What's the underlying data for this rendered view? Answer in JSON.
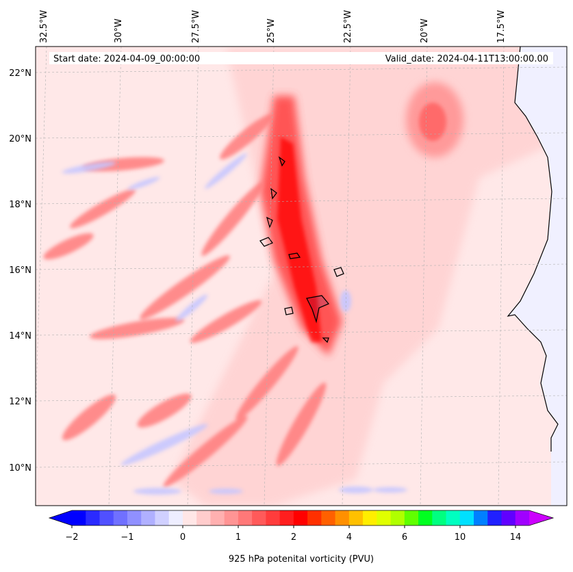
{
  "map": {
    "start_date": "Start date: 2024-04-09_00:00:00",
    "valid_date": "Valid_date: 2024-04-11T13:00:00.00",
    "lon_labels": [
      "32.5°W",
      "30°W",
      "27.5°W",
      "25°W",
      "22.5°W",
      "20°W",
      "17.5°W"
    ],
    "lat_labels": [
      "22°N",
      "20°N",
      "18°N",
      "16°N",
      "14°N",
      "12°N",
      "10°N"
    ],
    "colors": {
      "background_field": "#ffe8e8",
      "land": "#f0f0ff",
      "coastline": "#000000",
      "gridline": "#b0b0b0"
    }
  },
  "colorbar": {
    "label": "925 hPa potenital vorticity (PVU)",
    "tick_labels": [
      "−2",
      "−1",
      "0",
      "1",
      "2",
      "4",
      "6",
      "10",
      "14"
    ],
    "colors": [
      "#0000ff",
      "#2a2aff",
      "#5050ff",
      "#7070ff",
      "#9090ff",
      "#b0b0ff",
      "#d0d0ff",
      "#eeeeff",
      "#ffe6e6",
      "#ffcccc",
      "#ffb0b0",
      "#ff9494",
      "#ff7878",
      "#ff5a5a",
      "#ff3c3c",
      "#ff1e1e",
      "#ff0000",
      "#ff3000",
      "#ff6000",
      "#ff9000",
      "#ffc000",
      "#ffee00",
      "#e0ff00",
      "#b0ff00",
      "#60ff00",
      "#00ff20",
      "#00ff80",
      "#00ffc0",
      "#00e0ff",
      "#0080ff",
      "#2020ff",
      "#6000ff",
      "#a000ff"
    ],
    "extend_low_color": "#0000ff",
    "extend_high_color": "#cc00ff"
  }
}
